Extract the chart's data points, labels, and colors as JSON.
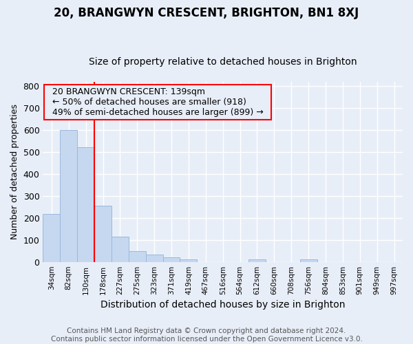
{
  "title": "20, BRANGWYN CRESCENT, BRIGHTON, BN1 8XJ",
  "subtitle": "Size of property relative to detached houses in Brighton",
  "xlabel": "Distribution of detached houses by size in Brighton",
  "ylabel": "Number of detached properties",
  "footer_line1": "Contains HM Land Registry data © Crown copyright and database right 2024.",
  "footer_line2": "Contains public sector information licensed under the Open Government Licence v3.0.",
  "annotation_line1": "20 BRANGWYN CRESCENT: 139sqm",
  "annotation_line2": "← 50% of detached houses are smaller (918)",
  "annotation_line3": "49% of semi-detached houses are larger (899) →",
  "bin_labels": [
    "34sqm",
    "82sqm",
    "130sqm",
    "178sqm",
    "227sqm",
    "275sqm",
    "323sqm",
    "371sqm",
    "419sqm",
    "467sqm",
    "516sqm",
    "564sqm",
    "612sqm",
    "660sqm",
    "708sqm",
    "756sqm",
    "804sqm",
    "853sqm",
    "901sqm",
    "949sqm",
    "997sqm"
  ],
  "bar_heights": [
    218,
    600,
    522,
    256,
    115,
    50,
    33,
    20,
    10,
    0,
    0,
    0,
    10,
    0,
    0,
    10,
    0,
    0,
    0,
    0,
    0
  ],
  "bar_color": "#c5d8f0",
  "bar_edge_color": "#9ab8dc",
  "red_line_x": 2.5,
  "ylim": [
    0,
    820
  ],
  "yticks": [
    0,
    100,
    200,
    300,
    400,
    500,
    600,
    700,
    800
  ],
  "background_color": "#e8eef8",
  "plot_bg_color": "#e8eef8",
  "grid_color": "#ffffff",
  "title_fontsize": 12,
  "subtitle_fontsize": 10,
  "annotation_fontsize": 9,
  "footer_fontsize": 7.5,
  "ylabel_fontsize": 9,
  "xlabel_fontsize": 10
}
